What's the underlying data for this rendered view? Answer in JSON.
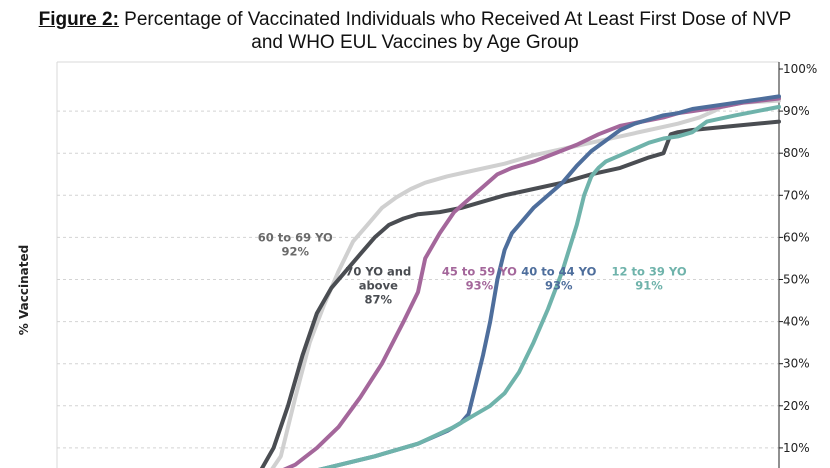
{
  "title": {
    "prefix": "Figure 2:",
    "line1": " Percentage of Vaccinated Individuals who Received At Least First Dose of NVP",
    "line2": "and WHO EUL Vaccines by Age Group"
  },
  "chart_data": {
    "type": "line",
    "title": "Figure 2: Percentage of Vaccinated Individuals who Received At Least First Dose of NVP and WHO EUL Vaccines by Age Group",
    "xlabel": "",
    "ylabel": "% Vaccinated",
    "ylim": [
      0,
      100
    ],
    "xlim": [
      0,
      100
    ],
    "yticks": [
      "10%",
      "20%",
      "30%",
      "40%",
      "50%",
      "60%",
      "70%",
      "80%",
      "90%",
      "100%"
    ],
    "y_axis_position": "right",
    "grid": "horizontal dashed",
    "legend": "inline labels",
    "series": [
      {
        "key": "s60",
        "color": "#d0d0d0",
        "x": [
          17,
          22,
          26,
          29,
          31,
          33,
          35,
          37,
          39,
          41,
          43,
          45,
          47,
          49,
          51,
          54,
          58,
          62,
          66,
          70,
          74,
          78,
          82,
          86,
          89,
          91,
          92,
          95,
          100
        ],
        "y": [
          0.5,
          1,
          1.5,
          3,
          8,
          22,
          35,
          44,
          52,
          59,
          63,
          67,
          69.5,
          71.5,
          73,
          74.5,
          76,
          77.5,
          79.5,
          81,
          82.5,
          84,
          85.5,
          87,
          88.5,
          90,
          91,
          92,
          92.5
        ]
      },
      {
        "key": "s70",
        "color": "#4a4d52",
        "x": [
          17,
          22,
          26,
          28,
          30,
          32,
          34,
          36,
          38,
          40,
          42,
          44,
          46,
          48,
          50,
          53,
          56,
          59,
          62,
          66,
          70,
          74,
          78,
          82,
          84,
          85,
          86,
          88,
          91,
          94,
          100
        ],
        "y": [
          0.5,
          1,
          2,
          4,
          10,
          20,
          32,
          42,
          48,
          52,
          56,
          60,
          63,
          64.5,
          65.5,
          66,
          67,
          68.5,
          70,
          71.5,
          73,
          75,
          76.5,
          79,
          80,
          84.5,
          85,
          85.5,
          86,
          86.5,
          87.5
        ]
      },
      {
        "key": "s45",
        "color": "#a4679b",
        "x": [
          17,
          24,
          29,
          33,
          36,
          39,
          42,
          45,
          48,
          50,
          51,
          53,
          55,
          57,
          59,
          61,
          63,
          66,
          69,
          72,
          75,
          78,
          81,
          84,
          86,
          88,
          90,
          92,
          95,
          100
        ],
        "y": [
          0.5,
          1,
          3,
          6,
          10,
          15,
          22,
          30,
          40,
          47,
          55,
          61,
          66,
          69,
          72,
          75,
          76.5,
          78,
          80,
          82,
          84.5,
          86.5,
          87.5,
          88.5,
          89.5,
          90,
          90.5,
          91,
          92,
          93
        ]
      },
      {
        "key": "s40",
        "color": "#4e6e9c",
        "x": [
          17,
          25,
          32,
          38,
          44,
          50,
          54,
          56,
          57,
          58,
          59,
          60,
          61,
          62,
          63,
          64,
          66,
          68,
          70,
          72,
          74,
          76,
          78,
          80,
          82,
          84,
          86,
          88,
          92,
          96,
          100
        ],
        "y": [
          0.5,
          1,
          3,
          5.5,
          8,
          11,
          14,
          16,
          18,
          25,
          32,
          40,
          50,
          57,
          61,
          63,
          67,
          70,
          73,
          77,
          80.5,
          83,
          85.5,
          87,
          88,
          89,
          89.5,
          90.5,
          91.5,
          92.5,
          93.5
        ]
      },
      {
        "key": "s12",
        "color": "#6fb3ab",
        "x": [
          17,
          25,
          32,
          38,
          44,
          50,
          55,
          58,
          60,
          62,
          64,
          66,
          68,
          70,
          72,
          73,
          74,
          75,
          76,
          78,
          80,
          82,
          84,
          86,
          88,
          90,
          94,
          100
        ],
        "y": [
          0.5,
          1,
          3,
          5.5,
          8,
          11,
          15,
          18,
          20,
          23,
          28,
          35,
          43,
          52,
          63,
          70,
          74.5,
          76.5,
          78,
          79.5,
          81,
          82.5,
          83.5,
          84,
          85,
          87.5,
          89,
          91
        ]
      }
    ],
    "annotations": [
      {
        "key": "s60",
        "lines": [
          "60 to 69 YO",
          "92%"
        ],
        "x": 33,
        "y": 59,
        "color": "#6a6a6a"
      },
      {
        "key": "s70",
        "lines": [
          "70 YO and",
          "above",
          "87%"
        ],
        "x": 44.5,
        "y": 51,
        "color": "#4a4d52"
      },
      {
        "key": "s45",
        "lines": [
          "45 to 59 YO",
          "93%"
        ],
        "x": 58.5,
        "y": 51,
        "color": "#a4679b"
      },
      {
        "key": "s40",
        "lines": [
          "40 to 44 YO",
          "93%"
        ],
        "x": 69.5,
        "y": 51,
        "color": "#4e6e9c"
      },
      {
        "key": "s12",
        "lines": [
          "12 to 39 YO",
          "91%"
        ],
        "x": 82,
        "y": 51,
        "color": "#6fb3ab"
      }
    ]
  }
}
